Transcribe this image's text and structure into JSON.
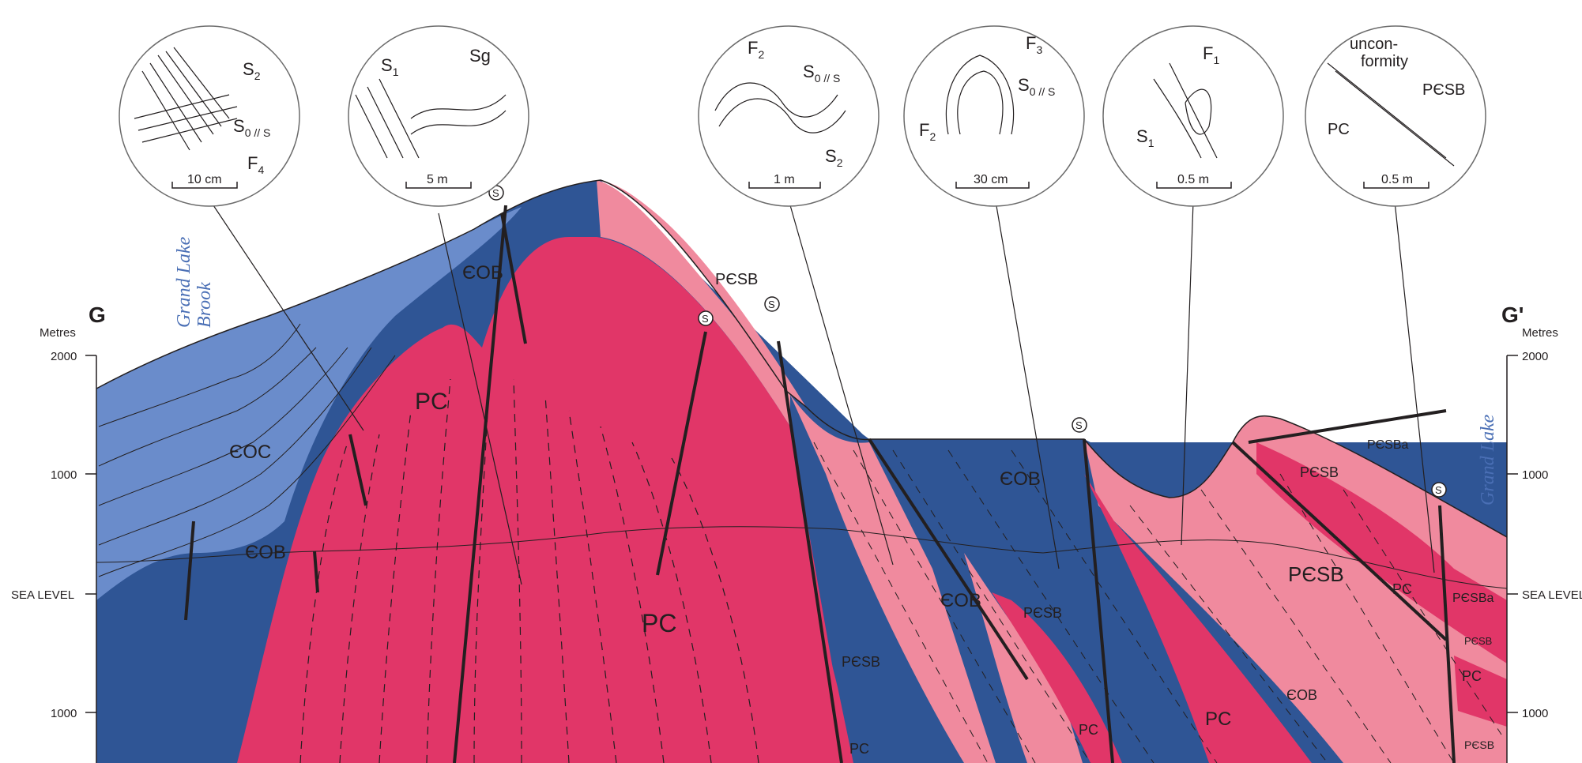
{
  "section": {
    "left_label": "G",
    "right_label": "G'",
    "left_axis_title": "Metres",
    "right_axis_title": "Metres",
    "left_ticks": [
      "2000",
      "1000",
      "SEA LEVEL",
      "1000"
    ],
    "right_ticks": [
      "2000",
      "1000",
      "SEA LEVEL",
      "1000"
    ],
    "left_river": [
      "Grand Lake",
      "Brook"
    ],
    "right_river": "Grand Lake"
  },
  "units": {
    "eoc": "ЄOC",
    "eob_1": "ЄOB",
    "eob_2": "ЄOB",
    "eob_3": "ЄOB",
    "eob_4": "ЄOB",
    "eob_5": "ЄOB",
    "pc_1": "PC",
    "pc_2": "PC",
    "pc_3": "PC",
    "pc_4": "PC",
    "pc_5": "PC",
    "pc_6": "PC",
    "pc_7": "PC",
    "pcsb_1": "PЄSB",
    "pcsb_2": "PЄSB",
    "pcsb_3": "PЄSB",
    "pcsb_4": "PЄSB",
    "pcsb_5": "PЄSB",
    "pcsb_6": "PЄSB",
    "pcsb_7": "PЄSB",
    "pcsba_1": "PЄSBa",
    "pcsba_2": "PЄSBa"
  },
  "s_marker": "S",
  "insets": [
    {
      "labels": [
        "S",
        "S",
        "F"
      ],
      "subs": [
        "2",
        "0 // S",
        "4"
      ],
      "scale": "10 cm"
    },
    {
      "labels": [
        "S",
        "Sg"
      ],
      "subs": [
        "1",
        ""
      ],
      "scale": "5 m"
    },
    {
      "labels": [
        "F",
        "S",
        "S"
      ],
      "subs": [
        "2",
        "0 // S",
        "2"
      ],
      "scale": "1 m"
    },
    {
      "labels": [
        "F",
        "S",
        "F"
      ],
      "subs": [
        "3",
        "0 // S",
        "2"
      ],
      "scale": "30 cm"
    },
    {
      "labels": [
        "F",
        "S"
      ],
      "subs": [
        "1",
        "1"
      ],
      "scale": "0.5 m"
    },
    {
      "labels": [
        "uncon-",
        "formity",
        "PЄSB",
        "PC"
      ],
      "scale": "0.5 m"
    }
  ],
  "colors": {
    "light_blue": "#6a8ccb",
    "dark_blue": "#2f5595",
    "magenta": "#e13668",
    "pink": "#f08a9e",
    "line": "#231f20"
  }
}
